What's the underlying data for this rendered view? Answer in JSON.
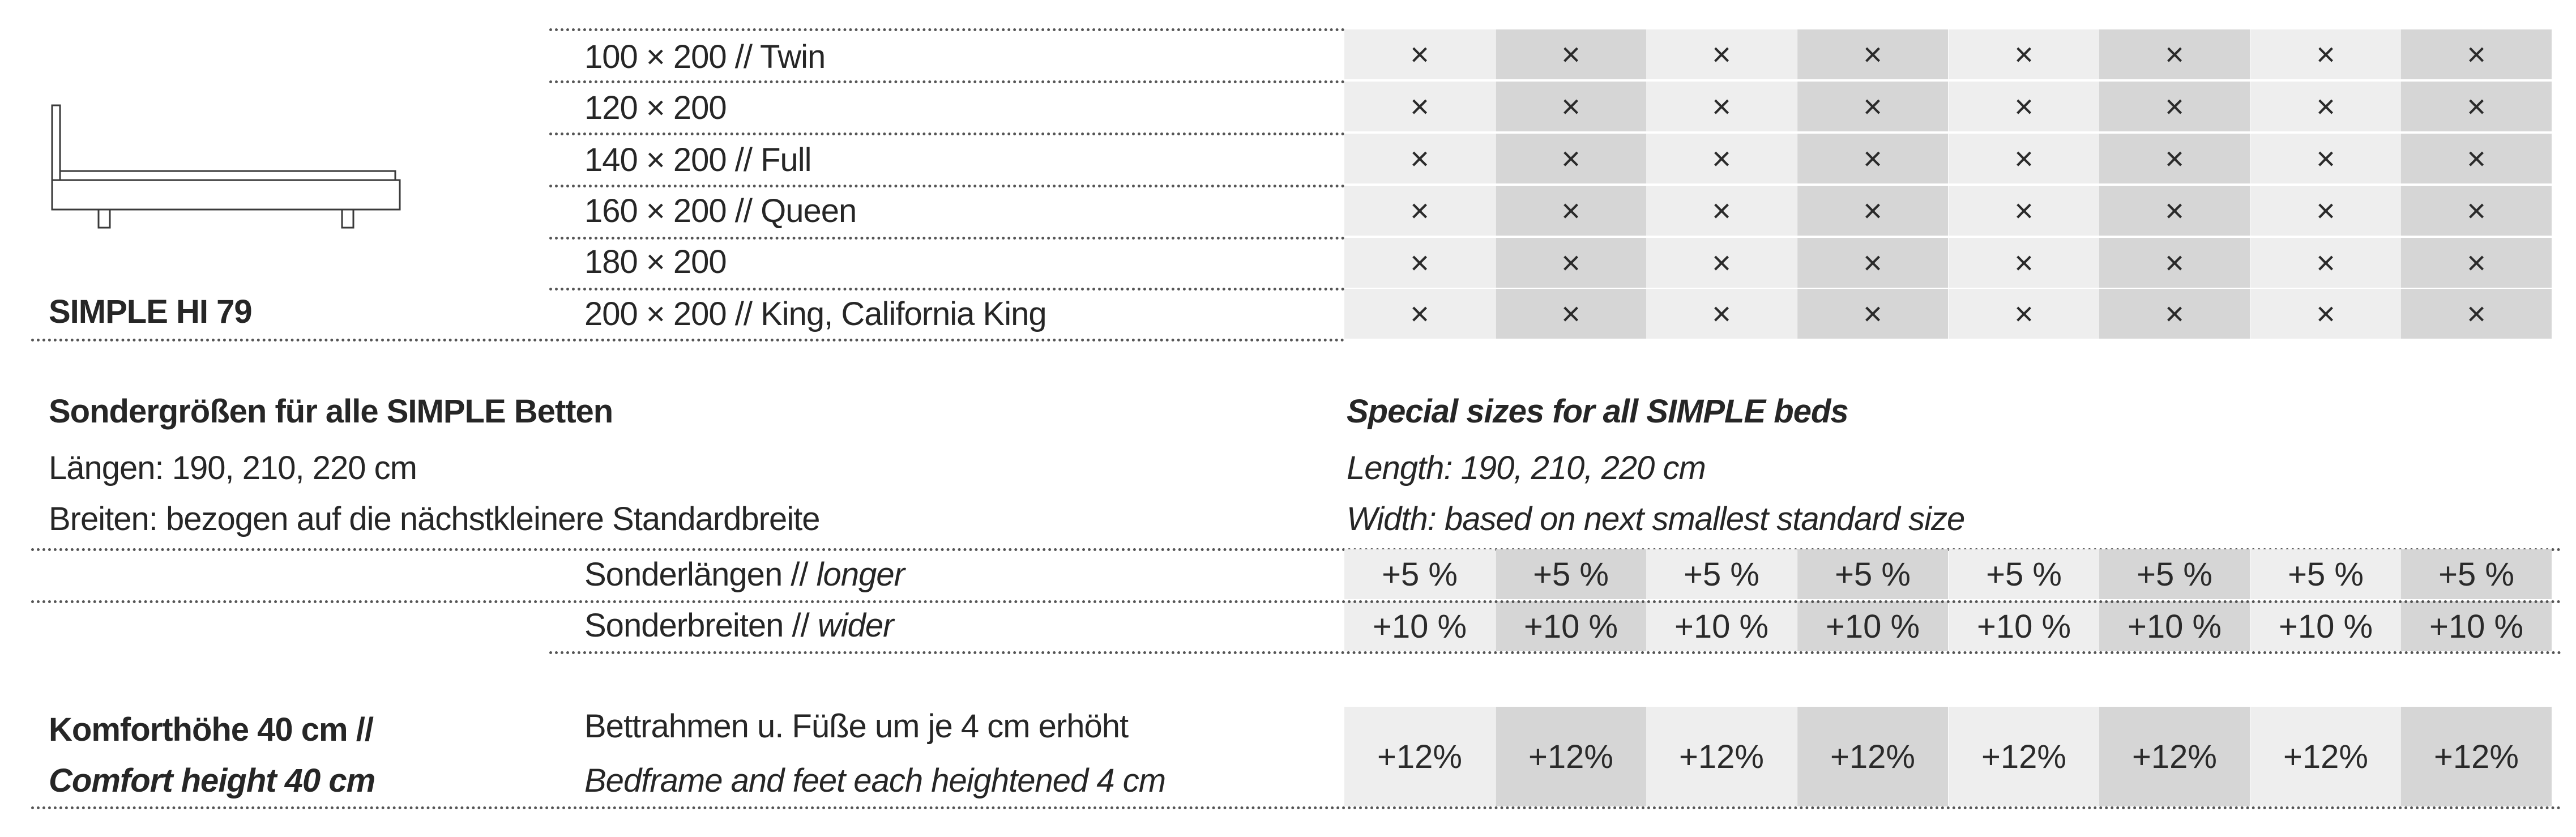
{
  "model": {
    "name": "SIMPLE HI 79",
    "icon": "bed-side-view-icon"
  },
  "sizes": [
    {
      "label": "100 × 200 // Twin",
      "marks": [
        "×",
        "×",
        "×",
        "×",
        "×",
        "×",
        "×",
        "×"
      ]
    },
    {
      "label": "120 × 200",
      "marks": [
        "×",
        "×",
        "×",
        "×",
        "×",
        "×",
        "×",
        "×"
      ]
    },
    {
      "label": "140 × 200 // Full",
      "marks": [
        "×",
        "×",
        "×",
        "×",
        "×",
        "×",
        "×",
        "×"
      ]
    },
    {
      "label": "160 × 200 // Queen",
      "marks": [
        "×",
        "×",
        "×",
        "×",
        "×",
        "×",
        "×",
        "×"
      ]
    },
    {
      "label": "180 × 200",
      "marks": [
        "×",
        "×",
        "×",
        "×",
        "×",
        "×",
        "×",
        "×"
      ]
    },
    {
      "label": "200 × 200 // King, California King",
      "marks": [
        "×",
        "×",
        "×",
        "×",
        "×",
        "×",
        "×",
        "×"
      ]
    }
  ],
  "special_sizes": {
    "de_title": "Sondergrößen für alle SIMPLE Betten",
    "de_length": "Längen: 190, 210, 220 cm",
    "de_width": "Breiten: bezogen auf die nächstkleinere Standardbreite",
    "en_title": "Special sizes for all SIMPLE beds",
    "en_length": "Length: 190, 210, 220 cm",
    "en_width": "Width: based on next smallest standard size"
  },
  "surcharges": [
    {
      "label_de": "Sonderlängen //",
      "label_en": "longer",
      "values": [
        "+5 %",
        "+5 %",
        "+5 %",
        "+5 %",
        "+5 %",
        "+5 %",
        "+5 %",
        "+5 %"
      ]
    },
    {
      "label_de": "Sonderbreiten //",
      "label_en": "wider",
      "values": [
        "+10 %",
        "+10 %",
        "+10 %",
        "+10 %",
        "+10 %",
        "+10 %",
        "+10 %",
        "+10 %"
      ]
    }
  ],
  "comfort": {
    "title_de": "Komforthöhe 40 cm //",
    "title_en": "Comfort height 40 cm",
    "desc_de": "Bettrahmen u. Füße um je 4 cm erhöht",
    "desc_en": "Bedframe and feet each heightened 4 cm",
    "values": [
      "+12%",
      "+12%",
      "+12%",
      "+12%",
      "+12%",
      "+12%",
      "+12%",
      "+12%"
    ]
  },
  "colors": {
    "text": "#262626",
    "column_light": "#eeeeee",
    "column_dark": "#d6d6d6",
    "dotted_rule": "#555555"
  }
}
